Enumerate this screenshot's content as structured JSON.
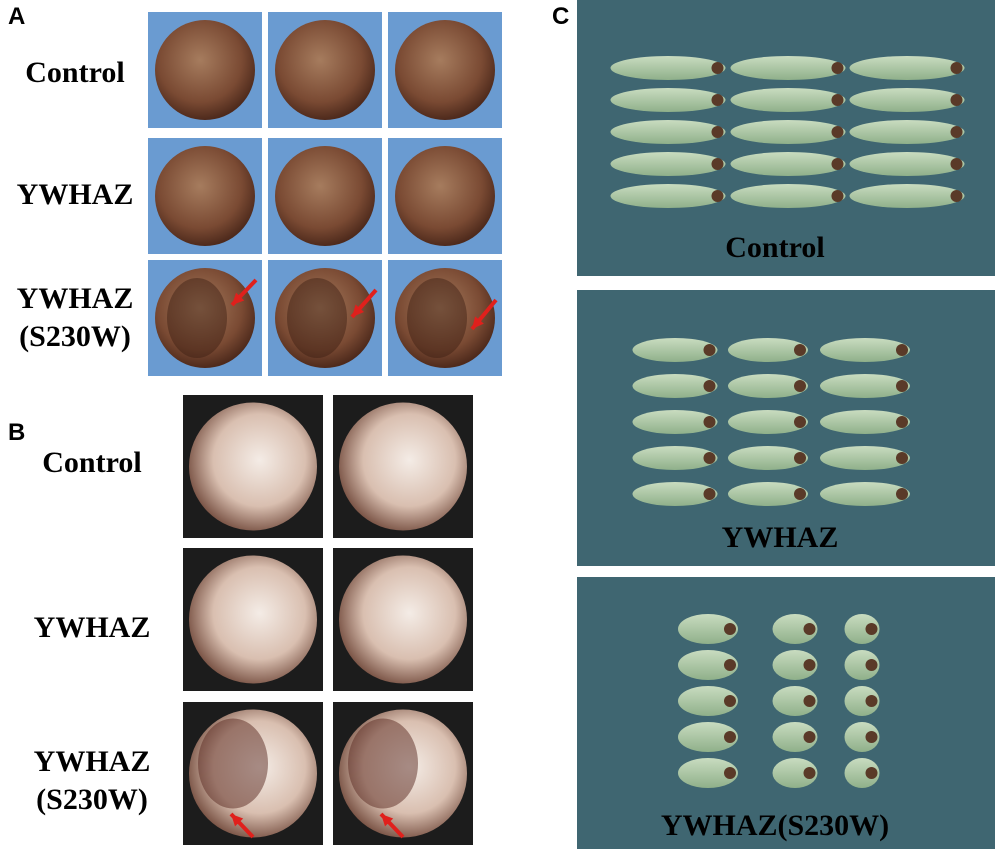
{
  "panels": [
    {
      "label": "A",
      "rows": [
        {
          "lines": [
            "Control"
          ]
        },
        {
          "lines": [
            "YWHAZ"
          ]
        },
        {
          "lines": [
            "YWHAZ",
            "(S230W)"
          ]
        }
      ]
    },
    {
      "label": "B",
      "rows": [
        {
          "lines": [
            "Control"
          ]
        },
        {
          "lines": [
            "YWHAZ"
          ]
        },
        {
          "lines": [
            "YWHAZ",
            "(S230W)"
          ]
        }
      ]
    },
    {
      "label": "C",
      "rows": [
        {
          "lines": [
            "Control"
          ]
        },
        {
          "lines": [
            "YWHAZ"
          ]
        },
        {
          "lines": [
            "YWHAZ(S230W)"
          ]
        }
      ]
    }
  ]
}
